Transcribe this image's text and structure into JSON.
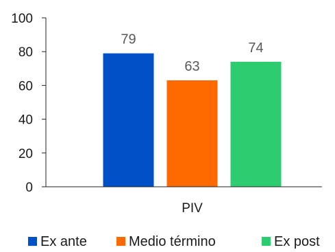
{
  "chart_data": {
    "type": "bar",
    "categories": [
      "PIV"
    ],
    "series": [
      {
        "name": "Ex ante",
        "values": [
          79
        ],
        "color": "#0050C8"
      },
      {
        "name": "Medio término",
        "values": [
          63
        ],
        "color": "#FF6A00"
      },
      {
        "name": "Ex post",
        "values": [
          74
        ],
        "color": "#2ECC71"
      }
    ],
    "ylim": [
      0,
      100
    ],
    "yticks": [
      0,
      20,
      40,
      60,
      80,
      100
    ],
    "grid": false,
    "legend": "bottom",
    "data_labels": true
  }
}
